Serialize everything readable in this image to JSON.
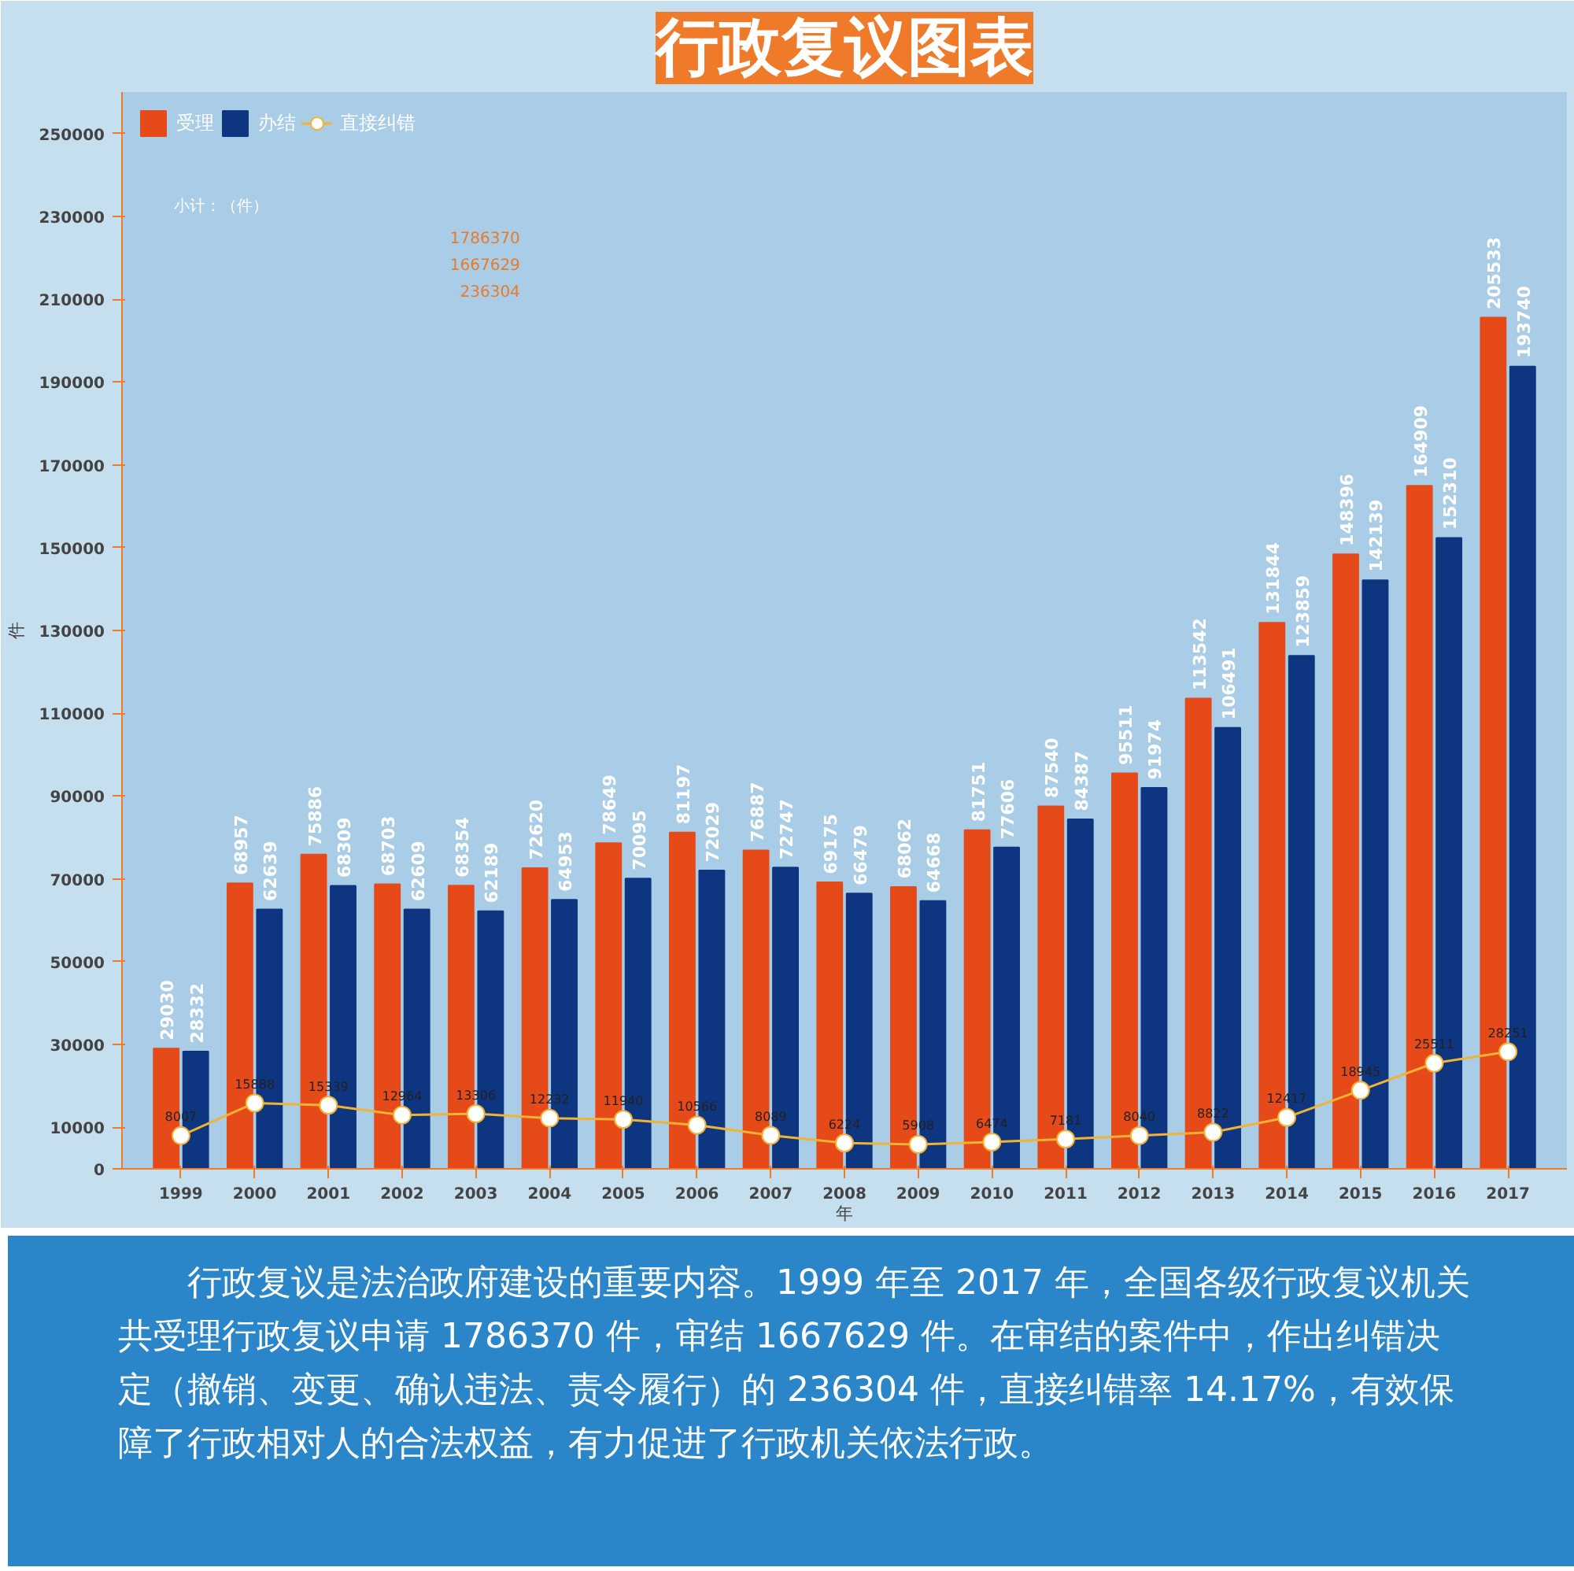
{
  "chart_data": {
    "type": "bar",
    "title": "行政复议图表",
    "ylabel": "件",
    "xlabel": "年",
    "categories": [
      "1999",
      "2000",
      "2001",
      "2002",
      "2003",
      "2004",
      "2005",
      "2006",
      "2007",
      "2008",
      "2009",
      "2010",
      "2011",
      "2012",
      "2013",
      "2014",
      "2015",
      "2016",
      "2017"
    ],
    "series": [
      {
        "name": "受理",
        "color": "#e64a19",
        "values": [
          29030,
          68957,
          75886,
          68703,
          68354,
          72620,
          78649,
          81197,
          76887,
          69175,
          68062,
          81751,
          87540,
          95511,
          113542,
          131844,
          148396,
          164909,
          205533
        ]
      },
      {
        "name": "办结",
        "color": "#0d3580",
        "values": [
          28332,
          62639,
          68309,
          62609,
          62189,
          64953,
          70095,
          72029,
          72747,
          66479,
          64668,
          77606,
          84387,
          91974,
          106491,
          123859,
          142139,
          152310,
          193740
        ]
      },
      {
        "name": "直接纠错",
        "type": "line",
        "color": "#f2b233",
        "values": [
          8007,
          15888,
          15339,
          12964,
          13306,
          12232,
          11940,
          10566,
          8089,
          6224,
          5908,
          6474,
          7181,
          8040,
          8822,
          12417,
          18945,
          25511,
          28251
        ]
      }
    ],
    "ylim": [
      0,
      260000
    ],
    "yticks": [
      0,
      10000,
      30000,
      50000,
      70000,
      90000,
      110000,
      130000,
      150000,
      170000,
      190000,
      210000,
      230000,
      250000
    ],
    "data_labels": true,
    "legend": "top left",
    "grid": false,
    "marker": "circle",
    "annotations": [
      "小计：（件）",
      "1786370",
      "1667629",
      "236304",
      "行政复议是法治政府建设的重要内容。1999 年至 2017 年，全国各级行政复议机关共受理行政复议申请 1786370 件，审结 1667629 件。在审结的案件中，作出纠错决定（撤销、变更、确认违法、责令履行）的 236304 件，直接纠错率 14.17%，有效保障了行政相对人的合法权益，有力促进了行政机关依法行政。"
    ]
  }
}
